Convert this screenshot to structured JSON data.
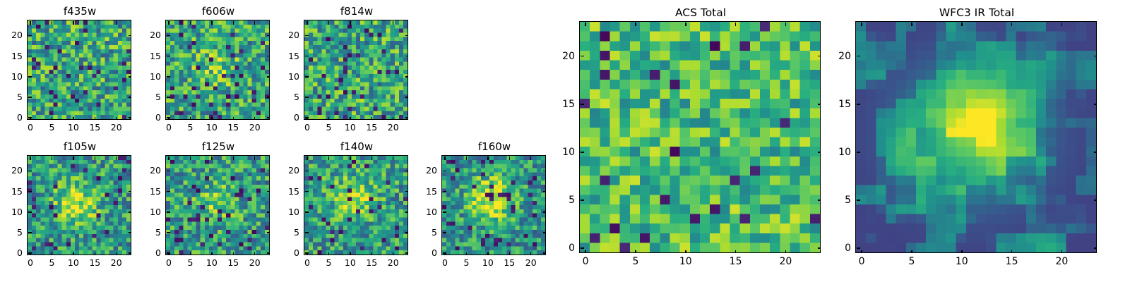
{
  "figure": {
    "background": "#ffffff",
    "description": "Grid of astronomical image cutouts shown as viridis heatmaps"
  },
  "chart_data": {
    "type": "heatmap",
    "colormap": "viridis",
    "grid_size": 24,
    "xticks": [
      0,
      5,
      10,
      15,
      20
    ],
    "yticks": [
      0,
      5,
      10,
      15,
      20
    ],
    "xlim": [
      0,
      24
    ],
    "ylim": [
      0,
      24
    ],
    "colors": {
      "viridis_min": "#440154",
      "viridis_mid": "#21918c",
      "viridis_max": "#fde725",
      "axis": "#000000"
    },
    "panels": [
      {
        "id": "f435w",
        "title": "f435w",
        "seed": 101,
        "base": 0.3,
        "range": 0.6,
        "dark_frac": 0.05,
        "smooth": 0,
        "source": null
      },
      {
        "id": "f606w",
        "title": "f606w",
        "seed": 202,
        "base": 0.3,
        "range": 0.58,
        "dark_frac": 0.05,
        "smooth": 0,
        "source": {
          "amp": 0.16,
          "sigma": 4.0,
          "cx": 11,
          "cy": 12
        }
      },
      {
        "id": "f814w",
        "title": "f814w",
        "seed": 303,
        "base": 0.3,
        "range": 0.6,
        "dark_frac": 0.05,
        "smooth": 0,
        "source": null
      },
      {
        "id": "f105w",
        "title": "f105w",
        "seed": 404,
        "base": 0.27,
        "range": 0.55,
        "dark_frac": 0.05,
        "smooth": 0,
        "source": {
          "amp": 0.38,
          "sigma": 3.4,
          "cx": 11,
          "cy": 12
        }
      },
      {
        "id": "f125w",
        "title": "f125w",
        "seed": 505,
        "base": 0.28,
        "range": 0.55,
        "dark_frac": 0.05,
        "smooth": 0,
        "source": {
          "amp": 0.24,
          "sigma": 3.2,
          "cx": 11,
          "cy": 12
        }
      },
      {
        "id": "f140w",
        "title": "f140w",
        "seed": 606,
        "base": 0.28,
        "range": 0.55,
        "dark_frac": 0.05,
        "smooth": 0,
        "source": {
          "amp": 0.33,
          "sigma": 3.4,
          "cx": 11,
          "cy": 13
        }
      },
      {
        "id": "f160w",
        "title": "f160w",
        "seed": 707,
        "base": 0.26,
        "range": 0.52,
        "dark_frac": 0.05,
        "smooth": 0,
        "source": {
          "amp": 0.5,
          "sigma": 3.6,
          "cx": 11,
          "cy": 13
        }
      },
      {
        "id": "acs_total",
        "title": "ACS Total",
        "seed": 808,
        "base": 0.45,
        "range": 0.48,
        "dark_frac": 0.045,
        "smooth": 0,
        "source": null
      },
      {
        "id": "wfc3_ir_total",
        "title": "WFC3 IR Total",
        "seed": 909,
        "base": 0.2,
        "range": 0.42,
        "dark_frac": 0.05,
        "smooth": 1,
        "source": {
          "amp": 0.62,
          "sigma": 4.3,
          "cx": 11,
          "cy": 12
        }
      }
    ]
  }
}
